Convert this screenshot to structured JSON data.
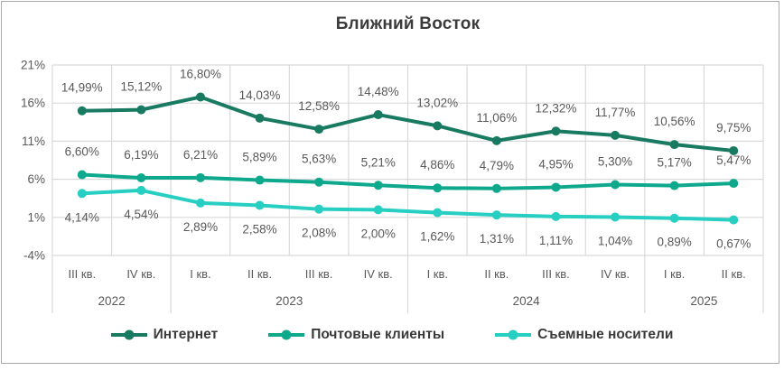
{
  "title": "Ближний Восток",
  "colors": {
    "series_internet": "#187a60",
    "series_mail": "#0ea98c",
    "series_removable": "#27cfc2",
    "grid": "#d9d9d9",
    "data_label": "#595959",
    "axis_label": "#595959",
    "title_text": "#3b3b3b",
    "legend_text": "#3a3a3a",
    "frame_border": "#ababab"
  },
  "chart_data": {
    "type": "line",
    "title": "Ближний Восток",
    "categories": [
      "III кв.",
      "IV кв.",
      "I кв.",
      "II кв.",
      "III кв.",
      "IV кв.",
      "I кв.",
      "II кв.",
      "III кв.",
      "IV кв.",
      "I кв.",
      "II кв."
    ],
    "year_groups": [
      {
        "label": "2022",
        "span": 2
      },
      {
        "label": "2023",
        "span": 4
      },
      {
        "label": "2024",
        "span": 4
      },
      {
        "label": "2025",
        "span": 2
      }
    ],
    "series": [
      {
        "name": "Интернет",
        "color": "#187a60",
        "label_position": "above",
        "values": [
          14.99,
          15.12,
          16.8,
          14.03,
          12.58,
          14.48,
          13.02,
          11.06,
          12.32,
          11.77,
          10.56,
          9.75
        ]
      },
      {
        "name": "Почтовые клиенты",
        "color": "#0ea98c",
        "label_position": "above",
        "values": [
          6.6,
          6.19,
          6.21,
          5.89,
          5.63,
          5.21,
          4.86,
          4.79,
          4.95,
          5.3,
          5.17,
          5.47
        ]
      },
      {
        "name": "Съемные носители",
        "color": "#27cfc2",
        "label_position": "below",
        "values": [
          4.14,
          4.54,
          2.89,
          2.58,
          2.08,
          2.0,
          1.62,
          1.31,
          1.11,
          1.04,
          0.89,
          0.67
        ]
      }
    ],
    "y_axis": {
      "min": -4,
      "max": 21,
      "step": 5,
      "tick_suffix": "%"
    },
    "data_label_format": {
      "decimals": 2,
      "decimal_separator": ",",
      "suffix": "%"
    },
    "grid": true,
    "legend_position": "bottom"
  }
}
